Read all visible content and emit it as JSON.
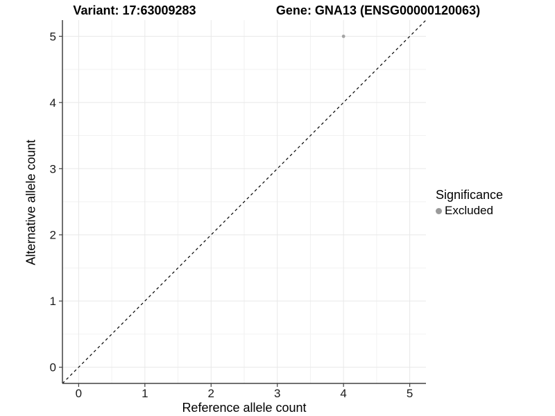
{
  "figure": {
    "variant_title": "Variant: 17:63009283",
    "gene_title": "Gene: GNA13 (ENSG00000120063)"
  },
  "chart_data": {
    "type": "scatter",
    "xlabel": "Reference allele count",
    "ylabel": "Alternative allele count",
    "xlim": [
      -0.245,
      5.245
    ],
    "ylim": [
      -0.245,
      5.245
    ],
    "x_ticks": [
      0,
      1,
      2,
      3,
      4,
      5
    ],
    "y_ticks": [
      0,
      1,
      2,
      3,
      4,
      5
    ],
    "grid": {
      "major": true,
      "minor": true
    },
    "series": [
      {
        "name": "Excluded",
        "color": "#a3a3a3",
        "points": [
          {
            "x": 4,
            "y": 5
          }
        ]
      }
    ],
    "identity_line": {
      "style": "dashed",
      "slope": 1,
      "intercept": 0,
      "color": "#000000"
    },
    "legend": {
      "title": "Significance",
      "position": "right",
      "items": [
        {
          "label": "Excluded",
          "color": "#9a9a9a"
        }
      ]
    },
    "colors": {
      "background": "#ffffff",
      "grid_major": "#e8e8e8",
      "grid_minor": "#f2f2f2",
      "axis_line": "#404040",
      "tick_mark": "#404040",
      "tick_label": "#1a1a1a"
    }
  }
}
